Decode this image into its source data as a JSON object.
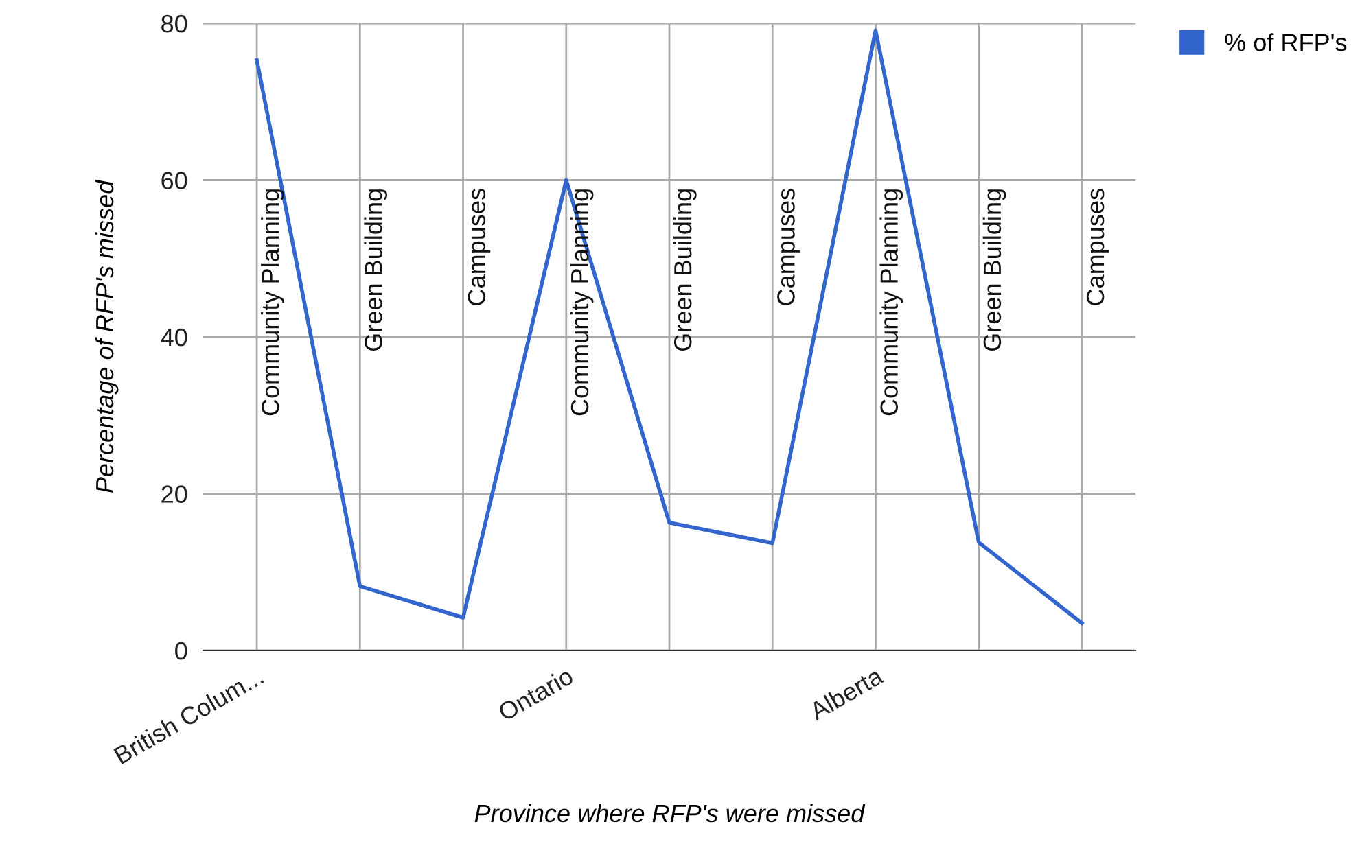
{
  "chart_data": {
    "type": "line",
    "xlabel": "Province where RFP's were missed",
    "ylabel": "Percentage of RFP's missed",
    "categories": [
      "British Colum...",
      null,
      null,
      "Ontario",
      null,
      null,
      "Alberta",
      null,
      null
    ],
    "series": [
      {
        "name": "% of RFP's",
        "color": "#3366cc",
        "values": [
          75.3,
          8.2,
          4.2,
          60,
          16.3,
          13.7,
          79.1,
          13.8,
          3.5
        ]
      }
    ],
    "annotations": [
      "Community Planning",
      "Green Building",
      "Campuses",
      "Community Planning",
      "Green Building",
      "Campuses",
      "Community Planning",
      "Green Building",
      "Campuses"
    ],
    "ylim": [
      0,
      80
    ],
    "yticks": [
      0,
      20,
      40,
      60,
      80
    ],
    "grid": true,
    "legend": "top right",
    "marker": "none",
    "line_style": "solid"
  }
}
